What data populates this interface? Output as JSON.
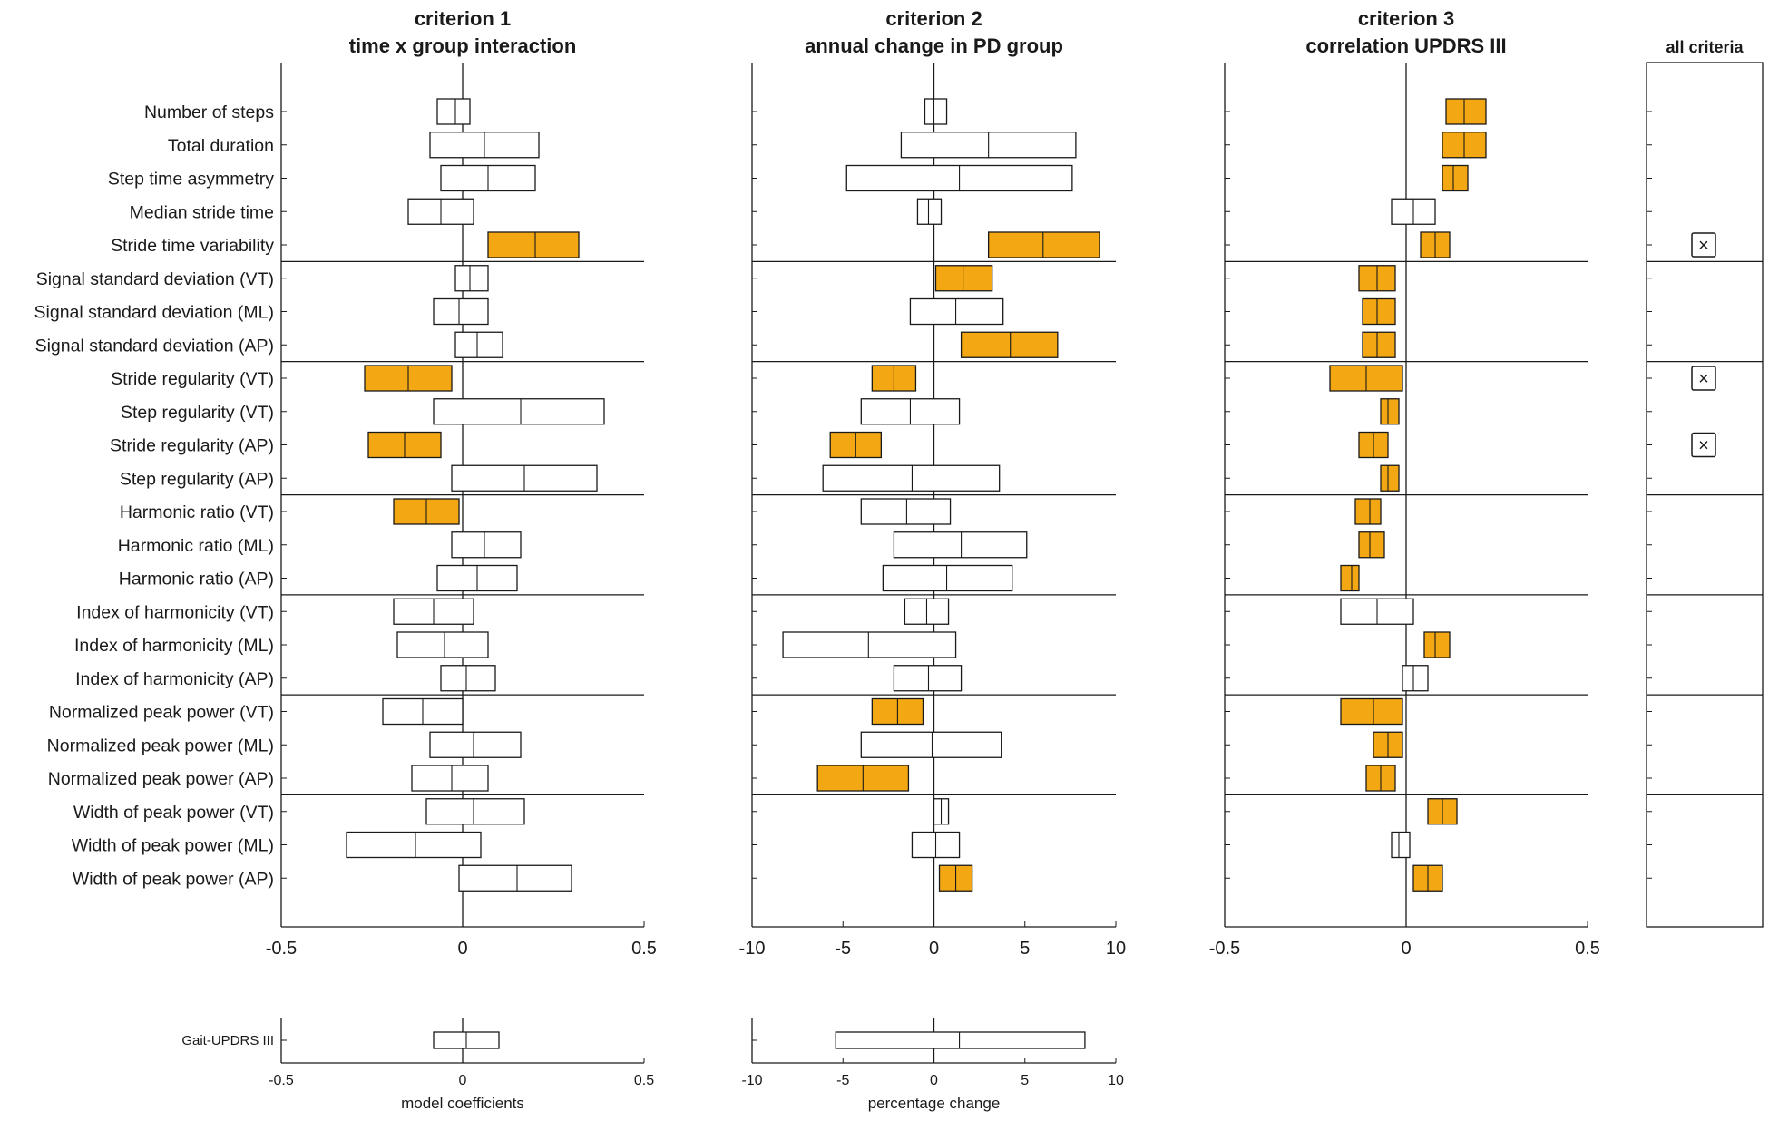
{
  "colors": {
    "highlight": "#f3a712",
    "box_fill": "#ffffff",
    "stroke": "#1a1a1a"
  },
  "row_labels": [
    "Number of steps",
    "Total duration",
    "Step time asymmetry",
    "Median stride time",
    "Stride time variability",
    "Signal standard deviation (VT)",
    "Signal standard deviation (ML)",
    "Signal standard deviation (AP)",
    "Stride regularity (VT)",
    "Step regularity (VT)",
    "Stride regularity (AP)",
    "Step regularity (AP)",
    "Harmonic ratio (VT)",
    "Harmonic ratio (ML)",
    "Harmonic ratio (AP)",
    "Index of harmonicity (VT)",
    "Index of harmonicity (ML)",
    "Index of harmonicity (AP)",
    "Normalized peak power (VT)",
    "Normalized peak power (ML)",
    "Normalized peak power (AP)",
    "Width of peak power (VT)",
    "Width of peak power (ML)",
    "Width of peak power (AP)"
  ],
  "group_separators_after_row": [
    4,
    7,
    11,
    14,
    17,
    20
  ],
  "chart_data": [
    {
      "type": "interval",
      "title": "criterion 1",
      "subtitle": "time x group interaction",
      "xlabel": "model coefficients",
      "xlim": [
        -0.5,
        0.5
      ],
      "xticks": [
        "-0.5",
        "0",
        "0.5"
      ],
      "intervals": [
        {
          "lo": -0.07,
          "mid": -0.02,
          "hi": 0.02,
          "sig": false
        },
        {
          "lo": -0.09,
          "mid": 0.06,
          "hi": 0.21,
          "sig": false
        },
        {
          "lo": -0.06,
          "mid": 0.07,
          "hi": 0.2,
          "sig": false
        },
        {
          "lo": -0.15,
          "mid": -0.06,
          "hi": 0.03,
          "sig": false
        },
        {
          "lo": 0.07,
          "mid": 0.2,
          "hi": 0.32,
          "sig": true
        },
        {
          "lo": -0.02,
          "mid": 0.02,
          "hi": 0.07,
          "sig": false
        },
        {
          "lo": -0.08,
          "mid": -0.01,
          "hi": 0.07,
          "sig": false
        },
        {
          "lo": -0.02,
          "mid": 0.04,
          "hi": 0.11,
          "sig": false
        },
        {
          "lo": -0.27,
          "mid": -0.15,
          "hi": -0.03,
          "sig": true
        },
        {
          "lo": -0.08,
          "mid": 0.16,
          "hi": 0.39,
          "sig": false
        },
        {
          "lo": -0.26,
          "mid": -0.16,
          "hi": -0.06,
          "sig": true
        },
        {
          "lo": -0.03,
          "mid": 0.17,
          "hi": 0.37,
          "sig": false
        },
        {
          "lo": -0.19,
          "mid": -0.1,
          "hi": -0.01,
          "sig": true
        },
        {
          "lo": -0.03,
          "mid": 0.06,
          "hi": 0.16,
          "sig": false
        },
        {
          "lo": -0.07,
          "mid": 0.04,
          "hi": 0.15,
          "sig": false
        },
        {
          "lo": -0.19,
          "mid": -0.08,
          "hi": 0.03,
          "sig": false
        },
        {
          "lo": -0.18,
          "mid": -0.05,
          "hi": 0.07,
          "sig": false
        },
        {
          "lo": -0.06,
          "mid": 0.01,
          "hi": 0.09,
          "sig": false
        },
        {
          "lo": -0.22,
          "mid": -0.11,
          "hi": 0.0,
          "sig": false
        },
        {
          "lo": -0.09,
          "mid": 0.03,
          "hi": 0.16,
          "sig": false
        },
        {
          "lo": -0.14,
          "mid": -0.03,
          "hi": 0.07,
          "sig": false
        },
        {
          "lo": -0.1,
          "mid": 0.03,
          "hi": 0.17,
          "sig": false
        },
        {
          "lo": -0.32,
          "mid": -0.13,
          "hi": 0.05,
          "sig": false
        },
        {
          "lo": -0.01,
          "mid": 0.15,
          "hi": 0.3,
          "sig": false
        }
      ],
      "summary": {
        "label": "Gait-UPDRS III",
        "lo": -0.08,
        "mid": 0.01,
        "hi": 0.1,
        "sig": false
      }
    },
    {
      "type": "interval",
      "title": "criterion 2",
      "subtitle": "annual change in PD group",
      "xlabel": "percentage change",
      "xlim": [
        -10,
        10
      ],
      "xticks": [
        "-10",
        "-5",
        "0",
        "5",
        "10"
      ],
      "intervals": [
        {
          "lo": -0.5,
          "mid": 0.0,
          "hi": 0.7,
          "sig": false
        },
        {
          "lo": -1.8,
          "mid": 3.0,
          "hi": 7.8,
          "sig": false
        },
        {
          "lo": -4.8,
          "mid": 1.4,
          "hi": 7.6,
          "sig": false
        },
        {
          "lo": -0.9,
          "mid": -0.3,
          "hi": 0.4,
          "sig": false
        },
        {
          "lo": 3.0,
          "mid": 6.0,
          "hi": 9.1,
          "sig": true
        },
        {
          "lo": 0.1,
          "mid": 1.6,
          "hi": 3.2,
          "sig": true
        },
        {
          "lo": -1.3,
          "mid": 1.2,
          "hi": 3.8,
          "sig": false
        },
        {
          "lo": 1.5,
          "mid": 4.2,
          "hi": 6.8,
          "sig": true
        },
        {
          "lo": -3.4,
          "mid": -2.2,
          "hi": -1.0,
          "sig": true
        },
        {
          "lo": -4.0,
          "mid": -1.3,
          "hi": 1.4,
          "sig": false
        },
        {
          "lo": -5.7,
          "mid": -4.3,
          "hi": -2.9,
          "sig": true
        },
        {
          "lo": -6.1,
          "mid": -1.2,
          "hi": 3.6,
          "sig": false
        },
        {
          "lo": -4.0,
          "mid": -1.5,
          "hi": 0.9,
          "sig": false
        },
        {
          "lo": -2.2,
          "mid": 1.5,
          "hi": 5.1,
          "sig": false
        },
        {
          "lo": -2.8,
          "mid": 0.7,
          "hi": 4.3,
          "sig": false
        },
        {
          "lo": -1.6,
          "mid": -0.4,
          "hi": 0.8,
          "sig": false
        },
        {
          "lo": -8.3,
          "mid": -3.6,
          "hi": 1.2,
          "sig": false
        },
        {
          "lo": -2.2,
          "mid": -0.3,
          "hi": 1.5,
          "sig": false
        },
        {
          "lo": -3.4,
          "mid": -2.0,
          "hi": -0.6,
          "sig": true
        },
        {
          "lo": -4.0,
          "mid": -0.1,
          "hi": 3.7,
          "sig": false
        },
        {
          "lo": -6.4,
          "mid": -3.9,
          "hi": -1.4,
          "sig": true
        },
        {
          "lo": 0.0,
          "mid": 0.4,
          "hi": 0.8,
          "sig": false
        },
        {
          "lo": -1.2,
          "mid": 0.1,
          "hi": 1.4,
          "sig": false
        },
        {
          "lo": 0.3,
          "mid": 1.2,
          "hi": 2.1,
          "sig": true
        }
      ],
      "summary": {
        "label": "",
        "lo": -5.4,
        "mid": 1.4,
        "hi": 8.3,
        "sig": false
      }
    },
    {
      "type": "interval",
      "title": "criterion 3",
      "subtitle": "correlation UPDRS III",
      "xlabel": "",
      "xlim": [
        -0.5,
        0.5
      ],
      "xticks": [
        "-0.5",
        "0",
        "0.5"
      ],
      "intervals": [
        {
          "lo": 0.11,
          "mid": 0.16,
          "hi": 0.22,
          "sig": true
        },
        {
          "lo": 0.1,
          "mid": 0.16,
          "hi": 0.22,
          "sig": true
        },
        {
          "lo": 0.1,
          "mid": 0.13,
          "hi": 0.17,
          "sig": true
        },
        {
          "lo": -0.04,
          "mid": 0.02,
          "hi": 0.08,
          "sig": false
        },
        {
          "lo": 0.04,
          "mid": 0.08,
          "hi": 0.12,
          "sig": true
        },
        {
          "lo": -0.13,
          "mid": -0.08,
          "hi": -0.03,
          "sig": true
        },
        {
          "lo": -0.12,
          "mid": -0.08,
          "hi": -0.03,
          "sig": true
        },
        {
          "lo": -0.12,
          "mid": -0.08,
          "hi": -0.03,
          "sig": true
        },
        {
          "lo": -0.21,
          "mid": -0.11,
          "hi": -0.01,
          "sig": true
        },
        {
          "lo": -0.07,
          "mid": -0.05,
          "hi": -0.02,
          "sig": true
        },
        {
          "lo": -0.13,
          "mid": -0.09,
          "hi": -0.05,
          "sig": true
        },
        {
          "lo": -0.07,
          "mid": -0.05,
          "hi": -0.02,
          "sig": true
        },
        {
          "lo": -0.14,
          "mid": -0.1,
          "hi": -0.07,
          "sig": true
        },
        {
          "lo": -0.13,
          "mid": -0.1,
          "hi": -0.06,
          "sig": true
        },
        {
          "lo": -0.18,
          "mid": -0.15,
          "hi": -0.13,
          "sig": true
        },
        {
          "lo": -0.18,
          "mid": -0.08,
          "hi": 0.02,
          "sig": false
        },
        {
          "lo": 0.05,
          "mid": 0.08,
          "hi": 0.12,
          "sig": true
        },
        {
          "lo": -0.01,
          "mid": 0.02,
          "hi": 0.06,
          "sig": false
        },
        {
          "lo": -0.18,
          "mid": -0.09,
          "hi": -0.01,
          "sig": true
        },
        {
          "lo": -0.09,
          "mid": -0.05,
          "hi": -0.01,
          "sig": true
        },
        {
          "lo": -0.11,
          "mid": -0.07,
          "hi": -0.03,
          "sig": true
        },
        {
          "lo": 0.06,
          "mid": 0.1,
          "hi": 0.14,
          "sig": true
        },
        {
          "lo": -0.04,
          "mid": -0.02,
          "hi": 0.01,
          "sig": false
        },
        {
          "lo": 0.02,
          "mid": 0.06,
          "hi": 0.1,
          "sig": true
        }
      ]
    },
    {
      "type": "marker",
      "title": "all criteria",
      "marked_rows": [
        4,
        8,
        10
      ],
      "marker_symbol": "×"
    }
  ]
}
